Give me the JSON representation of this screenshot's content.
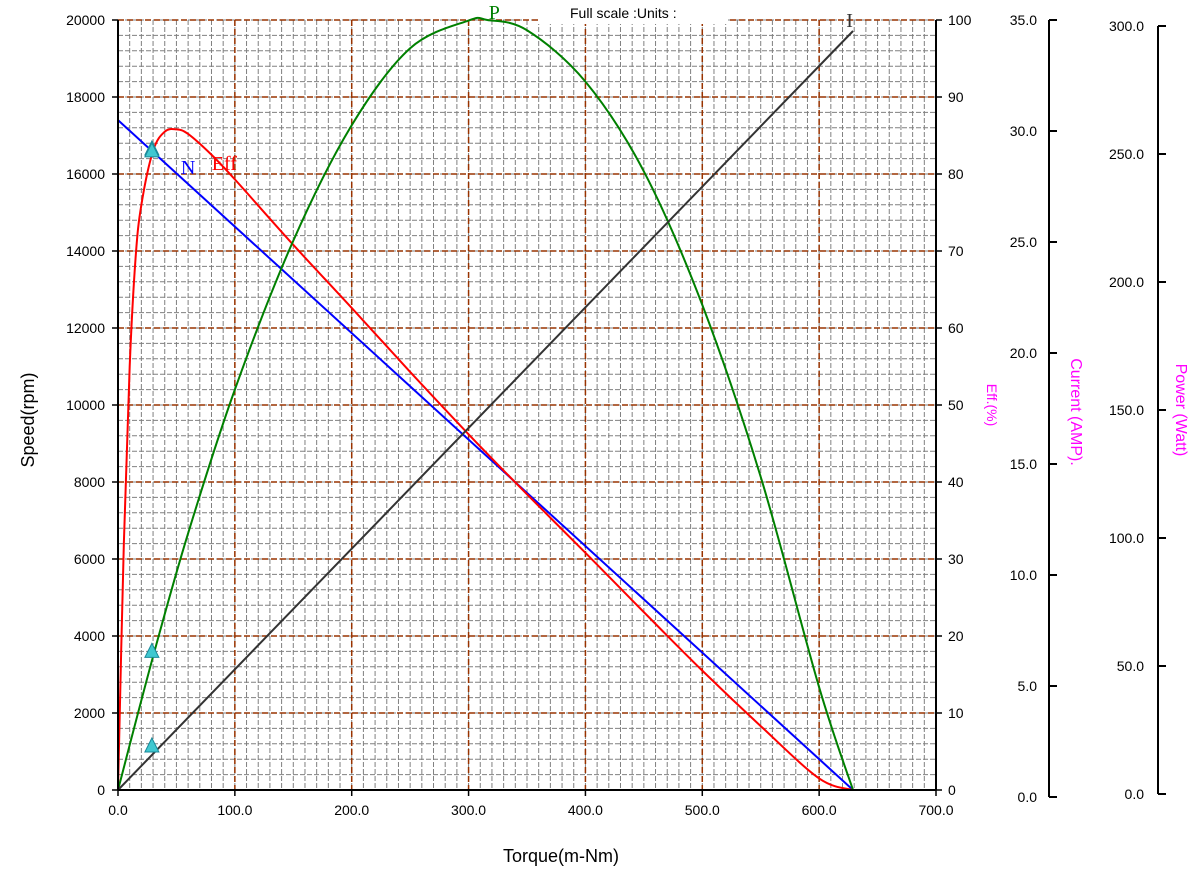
{
  "chart_data": {
    "type": "line",
    "header": "Full scale :Units :",
    "xlabel": "Torque(m-Nm)",
    "ylabel_left": "Speed(rpm)",
    "xlim": [
      0,
      700
    ],
    "x_ticks": [
      "0.0",
      "100.0",
      "200.0",
      "300.0",
      "400.0",
      "500.0",
      "600.0",
      "700.0"
    ],
    "grid": true,
    "axes": {
      "speed": {
        "label": "Speed(rpm)",
        "range": [
          0,
          20000
        ],
        "ticks": [
          "0",
          "2000",
          "4000",
          "6000",
          "8000",
          "10000",
          "12000",
          "14000",
          "16000",
          "18000",
          "20000"
        ]
      },
      "eff": {
        "label": "Eff.(%)",
        "range": [
          0,
          100
        ],
        "ticks": [
          "0",
          "10",
          "20",
          "30",
          "40",
          "50",
          "60",
          "70",
          "80",
          "90",
          "100"
        ]
      },
      "current": {
        "label": "Current (AMP).",
        "range": [
          0,
          35
        ],
        "ticks": [
          "0.0",
          "5.0",
          "10.0",
          "15.0",
          "20.0",
          "25.0",
          "30.0",
          "35.0"
        ]
      },
      "power": {
        "label": "Power (Watt)",
        "range": [
          0,
          300
        ],
        "ticks": [
          "0.0",
          "50.0",
          "100.0",
          "150.0",
          "200.0",
          "250.0",
          "300.0"
        ]
      }
    },
    "series": [
      {
        "name": "N",
        "axis": "speed",
        "color": "#0000ff",
        "x": [
          0,
          629
        ],
        "y": [
          17400,
          0
        ]
      },
      {
        "name": "Eff",
        "axis": "eff",
        "color": "#ff0000",
        "x": [
          0,
          5,
          10,
          15,
          20,
          30,
          40,
          50,
          60,
          80,
          100,
          150,
          200,
          250,
          300,
          350,
          400,
          450,
          500,
          550,
          600,
          629
        ],
        "y": [
          0,
          32,
          55,
          69,
          76,
          83,
          85.5,
          85.8,
          85.2,
          82.5,
          79.3,
          70.8,
          62.6,
          54.3,
          46.2,
          38.4,
          30.8,
          23.1,
          15.5,
          8.3,
          1.5,
          0
        ]
      },
      {
        "name": "P",
        "axis": "power",
        "color": "#008000",
        "x": [
          0,
          30,
          60,
          100,
          150,
          200,
          250,
          300,
          316,
          350,
          400,
          450,
          500,
          550,
          600,
          629
        ],
        "y": [
          0,
          52,
          100,
          156,
          214,
          259,
          289,
          299.8,
          300,
          296,
          276,
          241,
          189,
          122,
          40,
          0
        ]
      },
      {
        "name": "I",
        "axis": "current",
        "color": "#333333",
        "x": [
          0,
          629
        ],
        "y": [
          0,
          34.5
        ]
      }
    ],
    "markers": [
      {
        "axis": "speed",
        "x": 29,
        "y": 16650,
        "color": "#40c8d0"
      },
      {
        "axis": "eff",
        "x": 29,
        "y": 83,
        "color": "#40c8d0"
      },
      {
        "axis": "power",
        "x": 29,
        "y": 54,
        "color": "#40c8d0"
      },
      {
        "axis": "current",
        "x": 29,
        "y": 2.0,
        "color": "#40c8d0"
      }
    ],
    "curve_labels": [
      {
        "text": "N",
        "color": "#0000ff"
      },
      {
        "text": "Eff",
        "color": "#ff0000"
      },
      {
        "text": "P",
        "color": "#008000"
      },
      {
        "text": "I",
        "color": "#333333"
      }
    ],
    "colors": {
      "major_grid": "#993300",
      "minor_grid": "#808080",
      "axis_title_secondary": "#ff00ff"
    }
  }
}
